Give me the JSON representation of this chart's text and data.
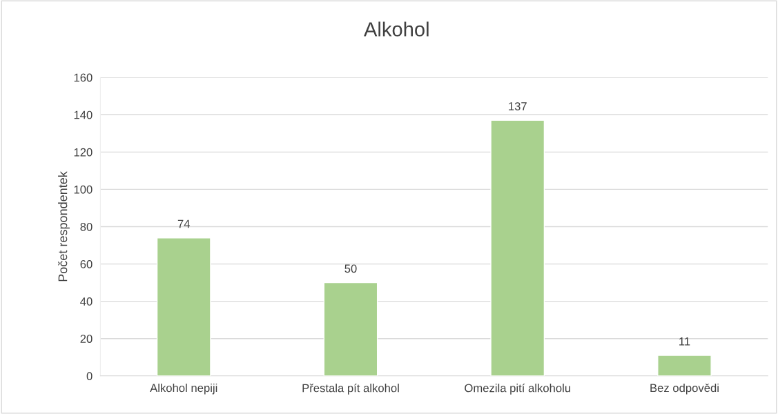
{
  "chart_data": {
    "type": "bar",
    "title": "Alkohol",
    "ylabel": "Počet respondentek",
    "categories": [
      "Alkohol nepiji",
      "Přestala pít alkohol",
      "Omezila pití alkoholu",
      "Bez odpovědi"
    ],
    "values": [
      74,
      50,
      137,
      11
    ],
    "color": "#a9d18e",
    "ylim": [
      0,
      160
    ],
    "yticks": [
      0,
      20,
      40,
      60,
      80,
      100,
      120,
      140,
      160
    ],
    "grid": "y",
    "data_labels": true
  }
}
